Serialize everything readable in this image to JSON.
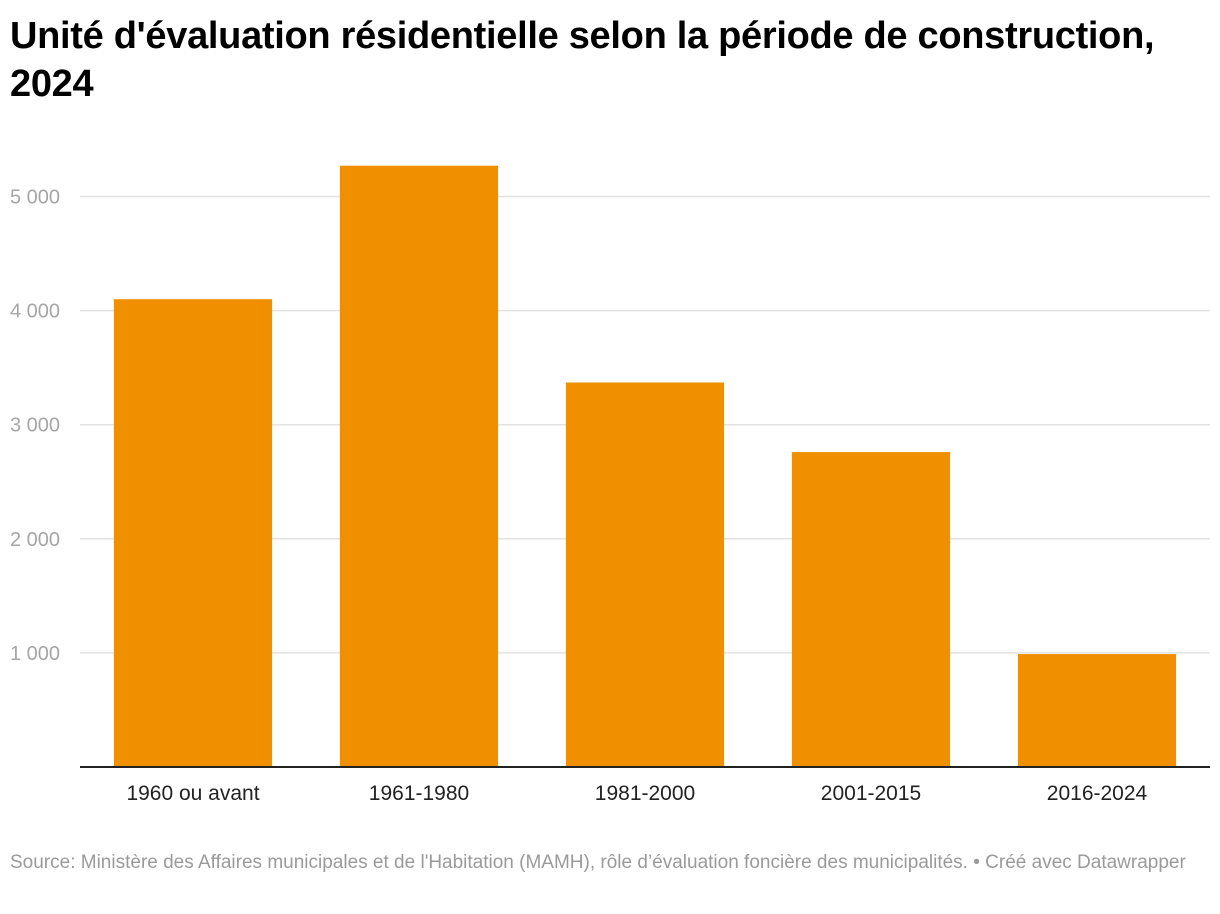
{
  "title": "Unité d'évaluation résidentielle selon la période de construction, 2024",
  "source": "Source: Ministère des Affaires municipales et de l'Habitation (MAMH), rôle d’évaluation foncière des municipalités. • Créé avec Datawrapper",
  "colors": {
    "bar": "#f09000"
  },
  "chart_data": {
    "type": "bar",
    "categories": [
      "1960 ou avant",
      "1961-1980",
      "1981-2000",
      "2001-2015",
      "2016-2024"
    ],
    "values": [
      4100,
      5270,
      3370,
      2760,
      990
    ],
    "yticks": [
      1000,
      2000,
      3000,
      4000,
      5000
    ],
    "ytick_labels": [
      "1 000",
      "2 000",
      "3 000",
      "4 000",
      "5 000"
    ],
    "ylim": [
      0,
      5500
    ],
    "xlabel": "",
    "ylabel": "",
    "grid": true,
    "legend": false
  }
}
